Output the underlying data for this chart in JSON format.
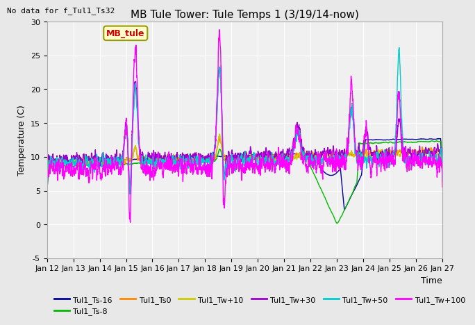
{
  "title": "MB Tule Tower: Tule Temps 1 (3/19/14-now)",
  "no_data_text": "No data for f_Tul1_Ts32",
  "xlabel": "Time",
  "ylabel": "Temperature (C)",
  "ylim": [
    -5,
    30
  ],
  "xlim": [
    0,
    15
  ],
  "xtick_labels": [
    "Jan 12",
    "Jan 13",
    "Jan 14",
    "Jan 15",
    "Jan 16",
    "Jan 17",
    "Jan 18",
    "Jan 19",
    "Jan 20",
    "Jan 21",
    "Jan 22",
    "Jan 23",
    "Jan 24",
    "Jan 25",
    "Jan 26",
    "Jan 27"
  ],
  "legend_label": "MB_tule",
  "series_labels": [
    "Tul1_Ts-16",
    "Tul1_Ts-8",
    "Tul1_Ts0",
    "Tul1_Tw+10",
    "Tul1_Tw+30",
    "Tul1_Tw+50",
    "Tul1_Tw+100"
  ],
  "series_colors": [
    "#000099",
    "#00bb00",
    "#ff8800",
    "#cccc00",
    "#9900cc",
    "#00cccc",
    "#ff00ff"
  ],
  "background_color": "#e8e8e8",
  "plot_bg_color": "#f0f0f0",
  "grid_color": "#ffffff",
  "title_fontsize": 11,
  "axis_fontsize": 9,
  "tick_fontsize": 8,
  "legend_ncol": 6,
  "legend_rows": 2
}
